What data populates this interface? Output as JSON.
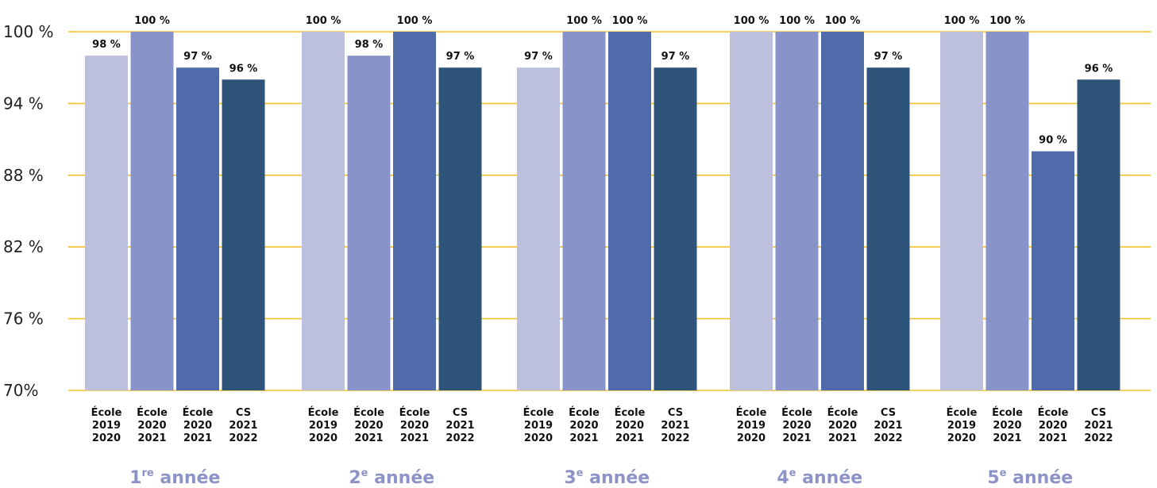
{
  "chart_data": {
    "type": "bar",
    "title": "",
    "xlabel": "",
    "ylabel": "",
    "ylim": [
      70,
      100
    ],
    "y_ticks": [
      70,
      76,
      82,
      88,
      94,
      100
    ],
    "y_tick_labels": [
      "70%",
      "76 %",
      "82 %",
      "88 %",
      "94 %",
      "100 %"
    ],
    "grid": true,
    "legend": "none",
    "categories": [
      {
        "num": "1",
        "sup": "re",
        "suffix": " année"
      },
      {
        "num": "2",
        "sup": "e",
        "suffix": " année"
      },
      {
        "num": "3",
        "sup": "e",
        "suffix": " année"
      },
      {
        "num": "4",
        "sup": "e",
        "suffix": " année"
      },
      {
        "num": "5",
        "sup": "e",
        "suffix": " année"
      }
    ],
    "bar_labels": [
      [
        "École",
        "2019",
        "2020"
      ],
      [
        "École",
        "2020",
        "2021"
      ],
      [
        "École",
        "2020",
        "2021"
      ],
      [
        "CS",
        "2021",
        "2022"
      ]
    ],
    "values": [
      [
        98,
        100,
        97,
        96
      ],
      [
        100,
        98,
        100,
        97
      ],
      [
        97,
        100,
        100,
        97
      ],
      [
        100,
        100,
        100,
        97
      ],
      [
        100,
        100,
        90,
        96
      ]
    ],
    "value_suffix": " %",
    "colors": [
      "#bcc0dc",
      "#8893c9",
      "#4f6ba9",
      "#2e5579"
    ],
    "grid_color": "#f2c12e",
    "category_label_color": "#8d93c6"
  }
}
